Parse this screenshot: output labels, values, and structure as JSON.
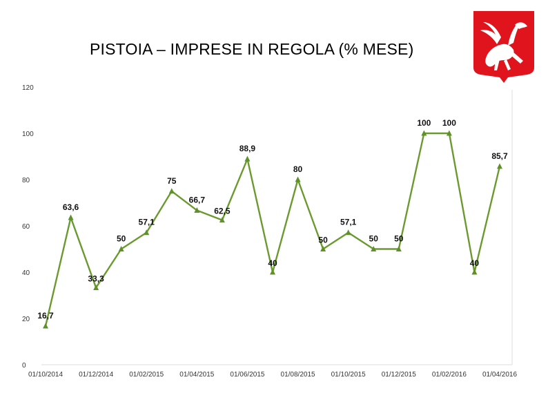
{
  "title": "PISTOIA – IMPRESE IN REGOLA (% MESE)",
  "colors": {
    "line": "#6a9a2e",
    "marker": "#5f9129",
    "logo": "#e0141c"
  },
  "chart_data": {
    "type": "line",
    "title": "PISTOIA – IMPRESE IN REGOLA (% MESE)",
    "xlabel": "",
    "ylabel": "",
    "ylim": [
      0,
      120
    ],
    "yticks": [
      0,
      20,
      40,
      60,
      80,
      100,
      120
    ],
    "xtick_labels": [
      "01/10/2014",
      "01/12/2014",
      "01/02/2015",
      "01/04/2015",
      "01/06/2015",
      "01/08/2015",
      "01/10/2015",
      "01/12/2015",
      "01/02/2016",
      "01/04/2016"
    ],
    "grid": false,
    "x": [
      "2014-10",
      "2014-11",
      "2014-12",
      "2015-01",
      "2015-02",
      "2015-03",
      "2015-04",
      "2015-05",
      "2015-06",
      "2015-07",
      "2015-08",
      "2015-09",
      "2015-10",
      "2015-11",
      "2015-12",
      "2016-01",
      "2016-02",
      "2016-03",
      "2016-04"
    ],
    "series": [
      {
        "values": [
          16.7,
          63.6,
          33.3,
          50,
          57.1,
          75,
          66.7,
          62.5,
          88.9,
          40,
          80,
          50,
          57.1,
          50,
          50,
          100,
          100,
          40,
          85.7
        ],
        "labels": [
          "16,7",
          "63,6",
          "33,3",
          "50",
          "57,1",
          "75",
          "66,7",
          "62,5",
          "88,9",
          "40",
          "80",
          "50",
          "57,1",
          "50",
          "50",
          "100",
          "100",
          "40",
          "85,7"
        ]
      }
    ]
  }
}
